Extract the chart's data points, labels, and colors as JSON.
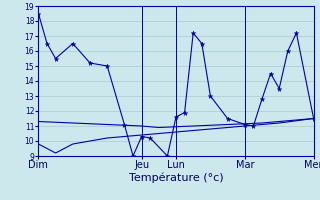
{
  "title": "Température (°c)",
  "bg_color": "#cde8ec",
  "grid_color": "#a8cccc",
  "line_color": "#0000aa",
  "ylim": [
    9,
    19
  ],
  "yticks": [
    9,
    10,
    11,
    12,
    13,
    14,
    15,
    16,
    17,
    18,
    19
  ],
  "day_labels": [
    "Dim",
    "Jeu",
    "Lun",
    "Mar",
    "Mer"
  ],
  "day_x": [
    0,
    12,
    16,
    24,
    32
  ],
  "xlim": [
    0,
    32
  ],
  "series1_x": [
    0,
    1,
    2,
    4,
    6,
    8,
    10,
    11,
    12,
    13,
    15,
    16,
    17,
    18,
    19,
    20,
    22,
    24,
    25,
    26,
    27,
    28,
    29,
    30,
    32
  ],
  "series1_y": [
    18.5,
    16.5,
    15.5,
    16.5,
    15.2,
    15.0,
    11.1,
    9.0,
    10.3,
    10.2,
    9.0,
    11.6,
    11.9,
    17.2,
    16.5,
    13.0,
    11.5,
    11.1,
    11.0,
    12.8,
    14.5,
    13.5,
    16.0,
    17.2,
    11.5
  ],
  "series2_x": [
    0,
    2,
    4,
    6,
    8,
    10,
    12,
    14,
    16,
    18,
    20,
    22,
    24,
    26,
    28,
    30,
    32
  ],
  "series2_y": [
    11.3,
    11.25,
    11.2,
    11.15,
    11.1,
    11.05,
    11.0,
    10.9,
    10.95,
    11.0,
    11.05,
    11.1,
    11.15,
    11.2,
    11.3,
    11.4,
    11.5
  ],
  "series3_x": [
    0,
    1,
    2,
    4,
    6,
    8,
    10,
    12,
    14,
    16,
    18,
    20,
    22,
    24,
    26,
    28,
    30,
    32
  ],
  "series3_y": [
    9.8,
    9.5,
    9.2,
    9.8,
    10.0,
    10.2,
    10.3,
    10.4,
    10.5,
    10.6,
    10.7,
    10.8,
    10.9,
    11.0,
    11.1,
    11.2,
    11.35,
    11.5
  ]
}
